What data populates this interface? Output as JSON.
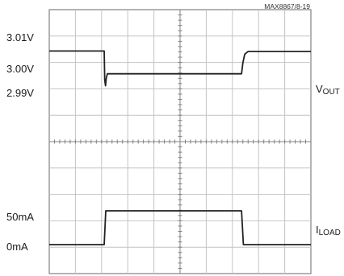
{
  "part_number": "MAX8867/8-19",
  "voltage_labels": [
    "3.01V",
    "3.00V",
    "2.99V"
  ],
  "current_labels": [
    "50mA",
    "0mA"
  ],
  "channel_labels": [
    {
      "main": "V",
      "sub": "OUT"
    },
    {
      "main": "I",
      "sub": "LOAD"
    }
  ],
  "chart_data": {
    "type": "line",
    "title": "",
    "xlabel": "",
    "ylabel": "",
    "grid": {
      "divisions_x": 10,
      "divisions_y": 10,
      "on": true
    },
    "x_range_divisions": [
      0,
      10
    ],
    "series": [
      {
        "name": "VOUT",
        "unit": "V",
        "axis_ticks": [
          3.01,
          3.0,
          2.99
        ],
        "points": [
          [
            0.0,
            3.0095
          ],
          [
            2.1,
            3.0095
          ],
          [
            2.12,
            2.996
          ],
          [
            2.15,
            2.9935
          ],
          [
            2.18,
            2.997
          ],
          [
            2.22,
            2.999
          ],
          [
            7.35,
            2.999
          ],
          [
            7.4,
            3.004
          ],
          [
            7.47,
            3.008
          ],
          [
            7.6,
            3.0093
          ],
          [
            10.0,
            3.0093
          ]
        ]
      },
      {
        "name": "ILOAD",
        "unit": "mA",
        "axis_ticks": [
          50,
          0
        ],
        "points": [
          [
            0.0,
            0
          ],
          [
            2.1,
            0
          ],
          [
            2.16,
            50
          ],
          [
            7.35,
            50
          ],
          [
            7.42,
            0
          ],
          [
            10.0,
            0
          ]
        ]
      }
    ]
  },
  "colors": {
    "background": "#ffffff",
    "grid_major": "#808080",
    "grid_minor": "#c4c4c4",
    "trace": "#222222",
    "text": "#1a1a1a"
  }
}
